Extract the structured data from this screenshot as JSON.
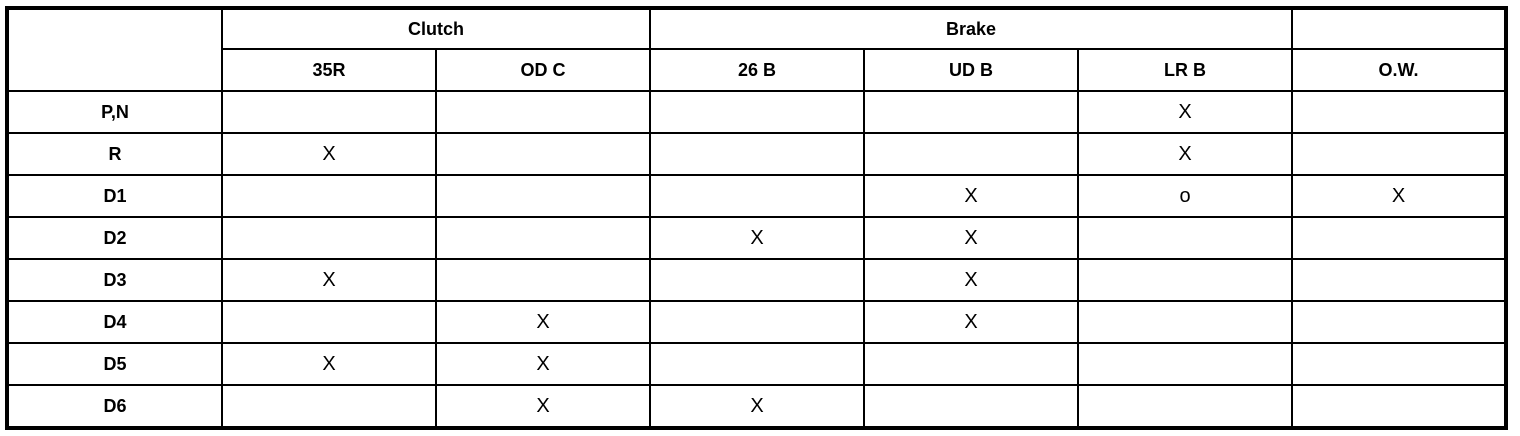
{
  "table": {
    "groups": [
      {
        "label": "",
        "span": 1
      },
      {
        "label": "Clutch",
        "span": 2
      },
      {
        "label": "Brake",
        "span": 3
      },
      {
        "label": "",
        "span": 1
      }
    ],
    "columns": [
      "35R",
      "OD C",
      "26 B",
      "UD B",
      "LR B",
      "O.W."
    ],
    "rows": [
      {
        "label": "P,N",
        "cells": [
          "",
          "",
          "",
          "",
          "X",
          ""
        ]
      },
      {
        "label": "R",
        "cells": [
          "X",
          "",
          "",
          "",
          "X",
          ""
        ]
      },
      {
        "label": "D1",
        "cells": [
          "",
          "",
          "",
          "X",
          "o",
          "X"
        ]
      },
      {
        "label": "D2",
        "cells": [
          "",
          "",
          "X",
          "X",
          "",
          ""
        ]
      },
      {
        "label": "D3",
        "cells": [
          "X",
          "",
          "",
          "X",
          "",
          ""
        ]
      },
      {
        "label": "D4",
        "cells": [
          "",
          "X",
          "",
          "X",
          "",
          ""
        ]
      },
      {
        "label": "D5",
        "cells": [
          "X",
          "X",
          "",
          "",
          "",
          ""
        ]
      },
      {
        "label": "D6",
        "cells": [
          "",
          "X",
          "X",
          "",
          "",
          ""
        ]
      }
    ]
  }
}
